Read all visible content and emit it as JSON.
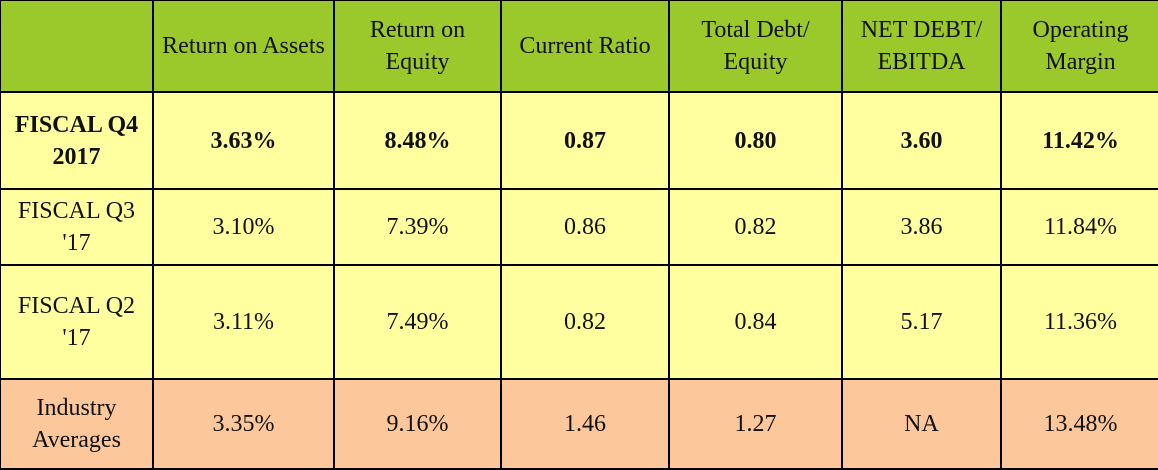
{
  "colors": {
    "header": "#9bc92b",
    "rows": "#ffff9f",
    "industry": "#fcc89b"
  },
  "headers": [
    "",
    "Return on Assets",
    "Return on Equity",
    "Current Ratio",
    "Total Debt/ Equity",
    "NET DEBT/ EBITDA",
    "Operating Margin"
  ],
  "rows": [
    {
      "label": "FISCAL Q4 2017",
      "values": [
        "3.63%",
        "8.48%",
        "0.87",
        "0.80",
        "3.60",
        "11.42%"
      ]
    },
    {
      "label": "FISCAL Q3 '17",
      "values": [
        "3.10%",
        "7.39%",
        "0.86",
        "0.82",
        "3.86",
        "11.84%"
      ]
    },
    {
      "label": "FISCAL Q2 '17",
      "values": [
        "3.11%",
        "7.49%",
        "0.82",
        "0.84",
        "5.17",
        "11.36%"
      ]
    },
    {
      "label": "Industry Averages",
      "values": [
        "3.35%",
        "9.16%",
        "1.46",
        "1.27",
        "NA",
        "13.48%"
      ]
    }
  ]
}
